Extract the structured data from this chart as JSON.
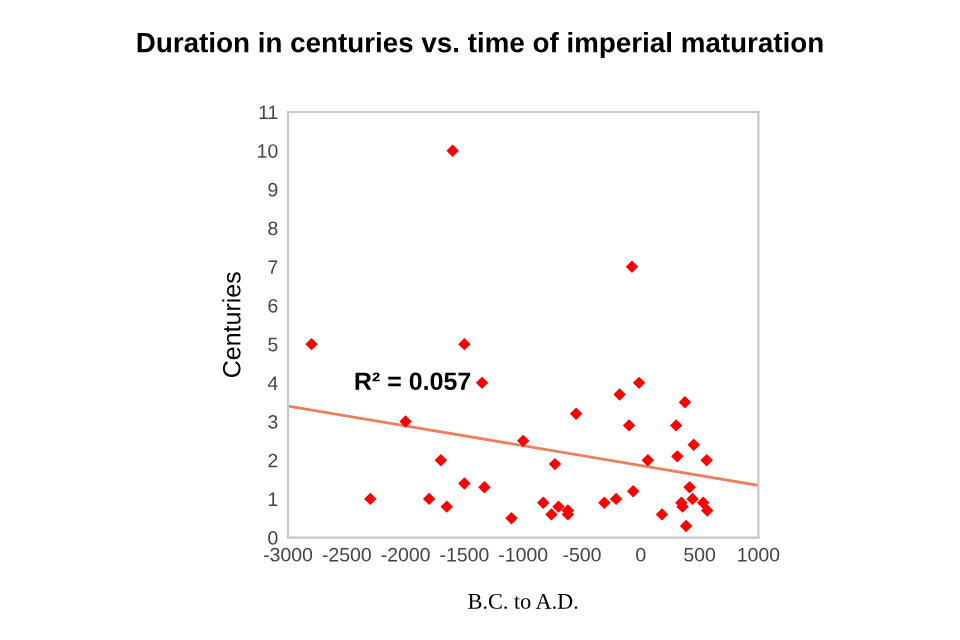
{
  "chart_data": {
    "type": "scatter",
    "title": "Duration in centuries vs. time of imperial maturation",
    "xlabel": "B.C. to A.D.",
    "ylabel": "Centuries",
    "xlim": [
      -3000,
      1000
    ],
    "xticks": [
      -3000,
      -2500,
      -2000,
      -1500,
      -1000,
      -500,
      0,
      500,
      1000
    ],
    "ylim": [
      0,
      11
    ],
    "yticks": [
      0,
      1,
      2,
      3,
      4,
      5,
      6,
      7,
      8,
      9,
      10,
      11
    ],
    "grid": false,
    "marker": "diamond",
    "series": [
      {
        "color": "#ff0000",
        "x": [
          -2800,
          -2300,
          -2000,
          -1800,
          -1700,
          -1650,
          -1600,
          -1500,
          -1500,
          -1350,
          -1330,
          -1100,
          -1000,
          -830,
          -760,
          -730,
          -700,
          -620,
          -620,
          -550,
          -310,
          -210,
          -180,
          -100,
          -75,
          -65,
          -15,
          60,
          180,
          300,
          310,
          345,
          355,
          375,
          385,
          415,
          440,
          450,
          530,
          560,
          565
        ],
        "values": [
          5,
          1,
          3,
          1,
          2,
          0.8,
          10,
          5,
          1.4,
          4,
          1.3,
          0.5,
          2.5,
          0.9,
          0.6,
          1.9,
          0.8,
          0.7,
          0.6,
          3.2,
          0.9,
          1,
          3.7,
          2.9,
          7,
          1.2,
          4,
          2,
          0.6,
          2.9,
          2.1,
          0.9,
          0.8,
          3.5,
          0.3,
          1.3,
          1,
          2.4,
          0.9,
          2,
          0.7
        ]
      },
      {
        "type": "line",
        "color": "#e8825e",
        "x": [
          -3000,
          1000
        ],
        "values": [
          3.4,
          1.35
        ],
        "marker": "none",
        "line_style": "solid"
      }
    ],
    "annotations": [
      "R² = 0.057"
    ]
  }
}
